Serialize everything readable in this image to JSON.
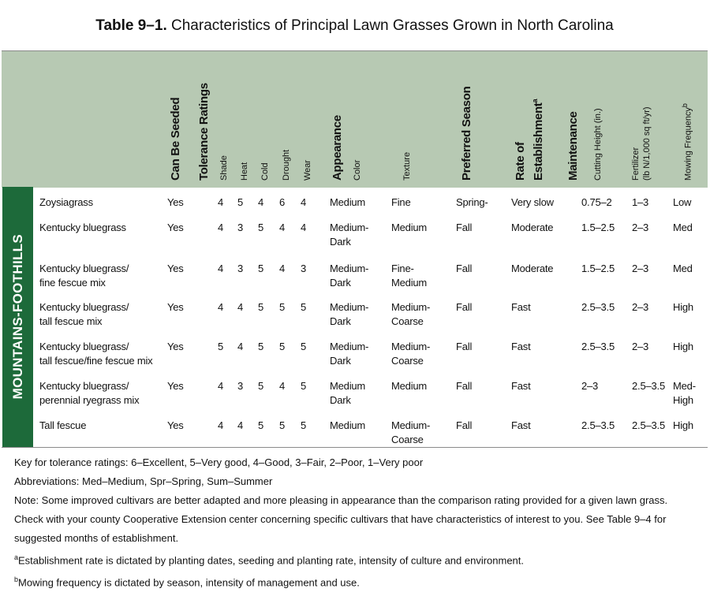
{
  "title": {
    "label": "Table 9–1.",
    "text": "Characteristics of Principal Lawn Grasses Grown in North Carolina"
  },
  "header": {
    "can_be_seeded": "Can Be Seeded",
    "tolerance": {
      "title": "Tolerance Ratings",
      "columns": [
        "Shade",
        "Heat",
        "Cold",
        "Drought",
        "Wear"
      ]
    },
    "appearance": {
      "title": "Appearance",
      "columns": [
        "Color",
        "Texture"
      ]
    },
    "preferred_season": "Preferred Season",
    "rate_of_establishment": {
      "lines": [
        "Rate of",
        "Establishment"
      ],
      "mark": "a"
    },
    "maintenance": {
      "title": "Maintenance",
      "cutting_height": "Cutting Height (in.)",
      "fertilizer": [
        "Fertilizer",
        "(lb N/1,000 sq ft/yr)"
      ],
      "mowing_frequency": "Mowing Frequency",
      "mowing_mark": "b"
    }
  },
  "region": "MOUNTAINS-FOOTHILLS",
  "table": {
    "rows": [
      [
        "Zoysiagrass",
        "Yes",
        4,
        5,
        4,
        6,
        4,
        "Medium",
        "Fine",
        "Spring-",
        "Very slow",
        "0.75–2",
        "1–3",
        "Low"
      ],
      [
        "Kentucky bluegrass",
        "Yes",
        4,
        3,
        5,
        4,
        4,
        "Medium-\nDark",
        "Medium",
        "Fall",
        "Moderate",
        "1.5–2.5",
        "2–3",
        "Med"
      ],
      [
        "Kentucky bluegrass/\nfine fescue mix",
        "Yes",
        4,
        3,
        5,
        4,
        3,
        "Medium-\nDark",
        "Fine-\nMedium",
        "Fall",
        "Moderate",
        "1.5–2.5",
        "2–3",
        "Med"
      ],
      [
        "Kentucky bluegrass/\ntall fescue mix",
        "Yes",
        4,
        4,
        5,
        5,
        5,
        "Medium-\nDark",
        "Medium-\nCoarse",
        "Fall",
        "Fast",
        "2.5–3.5",
        "2–3",
        "High"
      ],
      [
        "Kentucky bluegrass/\ntall fescue/fine fescue mix",
        "Yes",
        5,
        4,
        5,
        5,
        5,
        "Medium-\nDark",
        "Medium-\nCoarse",
        "Fall",
        "Fast",
        "2.5–3.5",
        "2–3",
        "High"
      ],
      [
        "Kentucky bluegrass/\nperennial ryegrass mix",
        "Yes",
        4,
        3,
        5,
        4,
        5,
        "Medium\nDark",
        "Medium",
        "Fall",
        "Fast",
        "2–3",
        "2.5–3.5",
        "Med-\nHigh"
      ],
      [
        "Tall fescue",
        "Yes",
        4,
        4,
        5,
        5,
        5,
        "Medium",
        "Medium-\nCoarse",
        "Fall",
        "Fast",
        "2.5–3.5",
        "2.5–3.5",
        "High"
      ]
    ]
  },
  "notes": [
    "Key for tolerance ratings: 6–Excellent, 5–Very good, 4–Good, 3–Fair, 2–Poor, 1–Very poor",
    "Abbreviations: Med–Medium, Spr–Spring, Sum–Summer",
    "Note: Some improved cultivars are better adapted and more pleasing in appearance than the comparison rating provided for a given lawn grass. Check with your county Cooperative Extension center concerning specific cultivars that have characteristics of interest to you. See Table 9–4 for suggested months of establishment."
  ],
  "footnotes": [
    {
      "mark": "a",
      "text": "Establishment rate is dictated by planting dates, seeding and planting rate, intensity of culture and environment."
    },
    {
      "mark": "b",
      "text": "Mowing frequency is dictated by season, intensity of management and use."
    }
  ]
}
